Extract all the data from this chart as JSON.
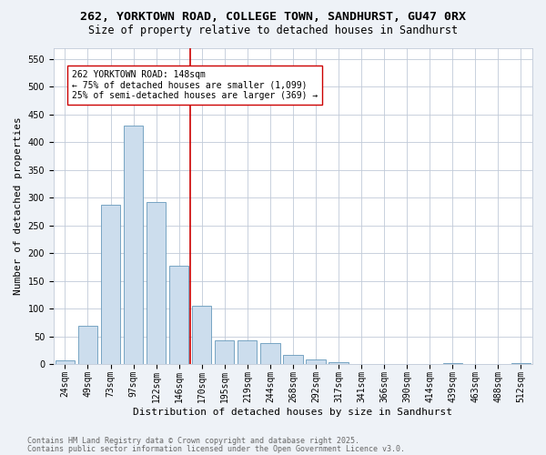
{
  "title1": "262, YORKTOWN ROAD, COLLEGE TOWN, SANDHURST, GU47 0RX",
  "title2": "Size of property relative to detached houses in Sandhurst",
  "xlabel": "Distribution of detached houses by size in Sandhurst",
  "ylabel": "Number of detached properties",
  "bar_labels": [
    "24sqm",
    "49sqm",
    "73sqm",
    "97sqm",
    "122sqm",
    "146sqm",
    "170sqm",
    "195sqm",
    "219sqm",
    "244sqm",
    "268sqm",
    "292sqm",
    "317sqm",
    "341sqm",
    "366sqm",
    "390sqm",
    "414sqm",
    "439sqm",
    "463sqm",
    "488sqm",
    "512sqm"
  ],
  "bar_values": [
    7,
    70,
    288,
    430,
    292,
    178,
    105,
    44,
    44,
    38,
    17,
    9,
    4,
    0,
    0,
    0,
    0,
    3,
    0,
    0,
    3
  ],
  "bar_color": "#ccdded",
  "bar_edge_color": "#6699bb",
  "vline_color": "#cc0000",
  "annotation_text": "262 YORKTOWN ROAD: 148sqm\n← 75% of detached houses are smaller (1,099)\n25% of semi-detached houses are larger (369) →",
  "annotation_box_color": "#ffffff",
  "annotation_box_edge": "#cc0000",
  "ylim": [
    0,
    570
  ],
  "yticks": [
    0,
    50,
    100,
    150,
    200,
    250,
    300,
    350,
    400,
    450,
    500,
    550
  ],
  "footnote1": "Contains HM Land Registry data © Crown copyright and database right 2025.",
  "footnote2": "Contains public sector information licensed under the Open Government Licence v3.0.",
  "bg_color": "#eef2f7",
  "plot_bg_color": "#ffffff",
  "grid_color": "#c0cad8",
  "title1_fontsize": 9.5,
  "title2_fontsize": 8.5,
  "axis_label_fontsize": 8,
  "tick_fontsize": 7,
  "annotation_fontsize": 7,
  "footnote_fontsize": 6
}
